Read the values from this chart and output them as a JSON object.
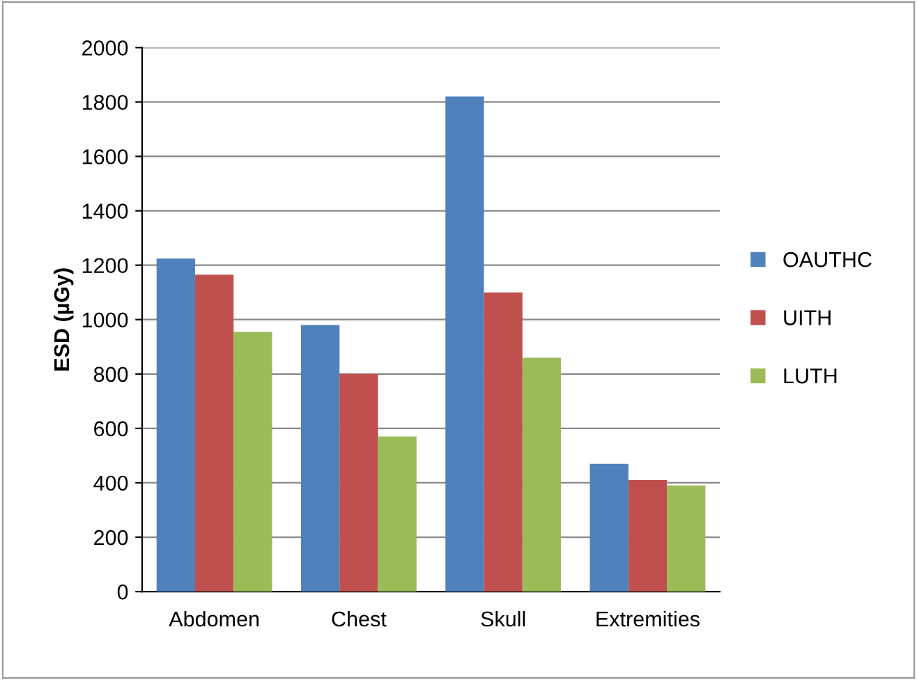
{
  "chart_data": {
    "type": "bar",
    "ylabel": "ESD (µGy)",
    "categories": [
      "Abdomen",
      "Chest",
      "Skull",
      "Extremities"
    ],
    "series": [
      {
        "name": "OAUTHC",
        "color": "#4f81bd",
        "values": [
          1225,
          980,
          1820,
          470
        ]
      },
      {
        "name": "UITH",
        "color": "#c0504d",
        "values": [
          1165,
          800,
          1100,
          410
        ]
      },
      {
        "name": "LUTH",
        "color": "#9bbb59",
        "values": [
          955,
          570,
          860,
          390
        ]
      }
    ],
    "ylim": [
      0,
      2000
    ],
    "yticks": [
      0,
      200,
      400,
      600,
      800,
      1000,
      1200,
      1400,
      1600,
      1800,
      2000
    ],
    "grid": "y",
    "legend": "right"
  }
}
